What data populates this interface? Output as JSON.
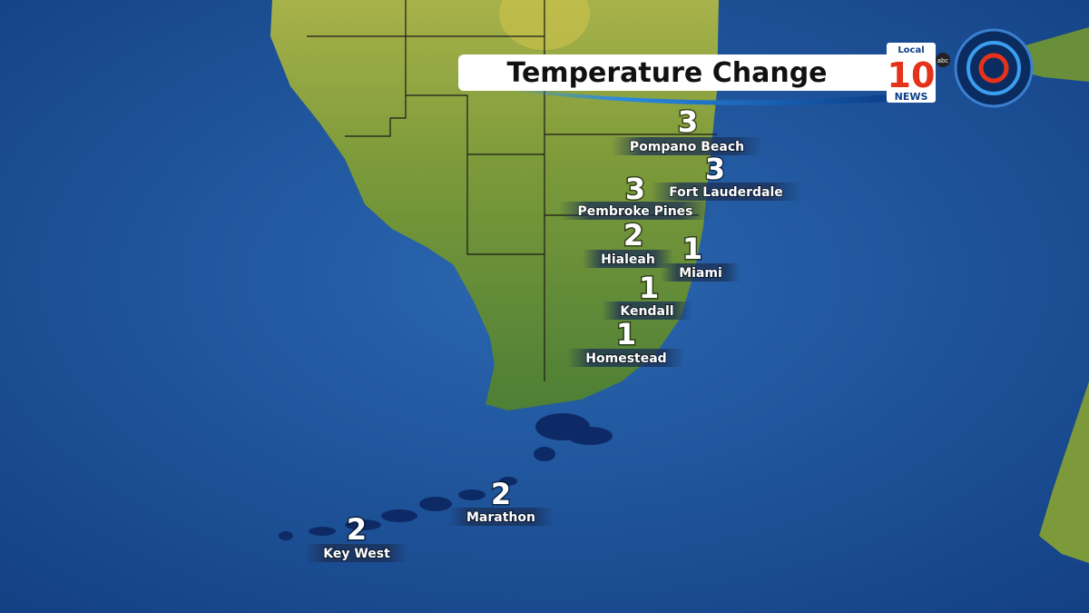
{
  "header": {
    "title": "Temperature Change",
    "logo": {
      "top": "Local",
      "number": "10",
      "bottom": "NEWS",
      "network": "abc"
    }
  },
  "cities": [
    {
      "name": "Pompano Beach",
      "value": "3"
    },
    {
      "name": "Fort Lauderdale",
      "value": "3"
    },
    {
      "name": "Pembroke Pines",
      "value": "3"
    },
    {
      "name": "Hialeah",
      "value": "2"
    },
    {
      "name": "Miami",
      "value": "1"
    },
    {
      "name": "Kendall",
      "value": "1"
    },
    {
      "name": "Homestead",
      "value": "1"
    },
    {
      "name": "Marathon",
      "value": "2"
    },
    {
      "name": "Key West",
      "value": "2"
    }
  ]
}
